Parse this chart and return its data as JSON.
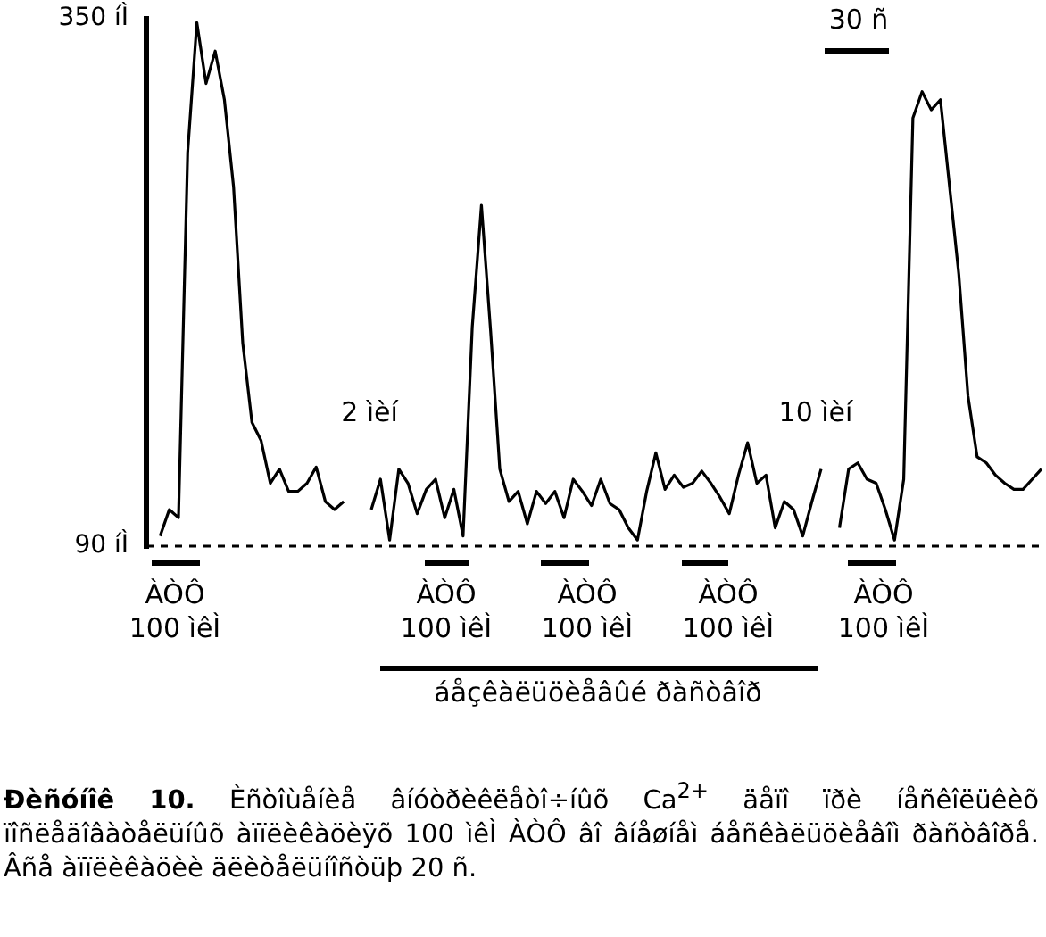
{
  "chart_data": {
    "type": "line",
    "title": "Ðèñóíîê 10.",
    "subtitle": "Èñòîùåíèå âíóòðèêëåòî÷íûõ Ca$^{2+}$ äåïî ïðè íåñêîëüêèõ ïîñëåäîâàòåëüíûõ àïïëèêàöèÿõ 100 ìêÌ ÀÒÔ âî âíåøíåì áåñêàëüöèåâîì ðàñòâîðå. Âñå àïïëèêàöèè äëèòåëüíîñòüþ 20 ñ.",
    "categories": [
      null,
      null,
      null,
      null,
      null,
      null,
      null,
      null,
      null,
      null,
      null,
      null,
      null,
      null,
      null,
      null,
      null,
      null,
      null,
      null,
      null,
      null,
      null,
      null,
      null,
      null,
      null,
      null,
      null,
      null,
      null,
      null,
      null,
      null,
      null,
      null,
      null,
      null,
      null,
      null,
      null,
      null,
      null,
      null,
      null,
      null,
      null,
      null,
      null,
      null,
      null,
      null,
      null,
      null,
      null,
      null,
      null,
      null,
      null,
      null,
      null,
      null,
      null,
      null,
      null,
      null,
      null,
      null,
      null,
      null,
      null,
      null,
      null,
      null,
      null,
      null,
      null,
      null,
      null,
      null,
      null,
      null,
      null,
      null,
      null,
      null,
      null,
      null,
      null,
      null,
      null,
      null,
      null,
      null,
      null,
      null,
      null,
      null
    ],
    "series": [
      {
        "color": "#000000",
        "values": [
          null,
          95,
          108,
          104,
          284,
          348,
          318,
          334,
          310,
          267,
          190,
          151,
          142,
          121,
          128,
          117,
          117,
          121,
          129,
          112,
          108,
          112,
          null,
          null,
          108,
          123,
          93,
          128,
          121,
          106,
          118,
          123,
          104,
          118,
          95,
          198,
          258,
          196,
          128,
          112,
          117,
          101,
          117,
          111,
          117,
          104,
          123,
          117,
          110,
          123,
          111,
          108,
          99,
          93,
          117,
          136,
          118,
          125,
          119,
          121,
          127,
          121,
          114,
          106,
          125,
          141,
          121,
          125,
          99,
          112,
          108,
          95,
          112,
          128,
          null,
          99,
          128,
          131,
          123,
          121,
          108,
          93,
          123,
          301,
          314,
          305,
          310,
          267,
          224,
          164,
          134,
          131,
          125,
          121,
          118,
          118,
          123,
          128
        ]
      }
    ],
    "ylim": [
      90,
      350
    ],
    "yticks": [
      {
        "value": 90,
        "label": "90 íÌ"
      },
      {
        "value": 350,
        "label": "350 íÌ"
      }
    ],
    "tick_labels": "y",
    "grid": false,
    "legend": false,
    "marker": "none",
    "line_style": "solid",
    "ref_lines": [
      {
        "axis": "y",
        "value": 90,
        "line_style": "dashed"
      }
    ],
    "annotations": [
      "2 ìèí",
      "10 ìèí",
      "30 ñ",
      "ÀÒÔ 100 ìêÌ",
      "ÀÒÔ 100 ìêÌ",
      "ÀÒÔ 100 ìêÌ",
      "ÀÒÔ 100 ìêÌ",
      "ÀÒÔ 100 ìêÌ",
      "áåçêàëüöèåâûé ðàñòâîð"
    ]
  }
}
